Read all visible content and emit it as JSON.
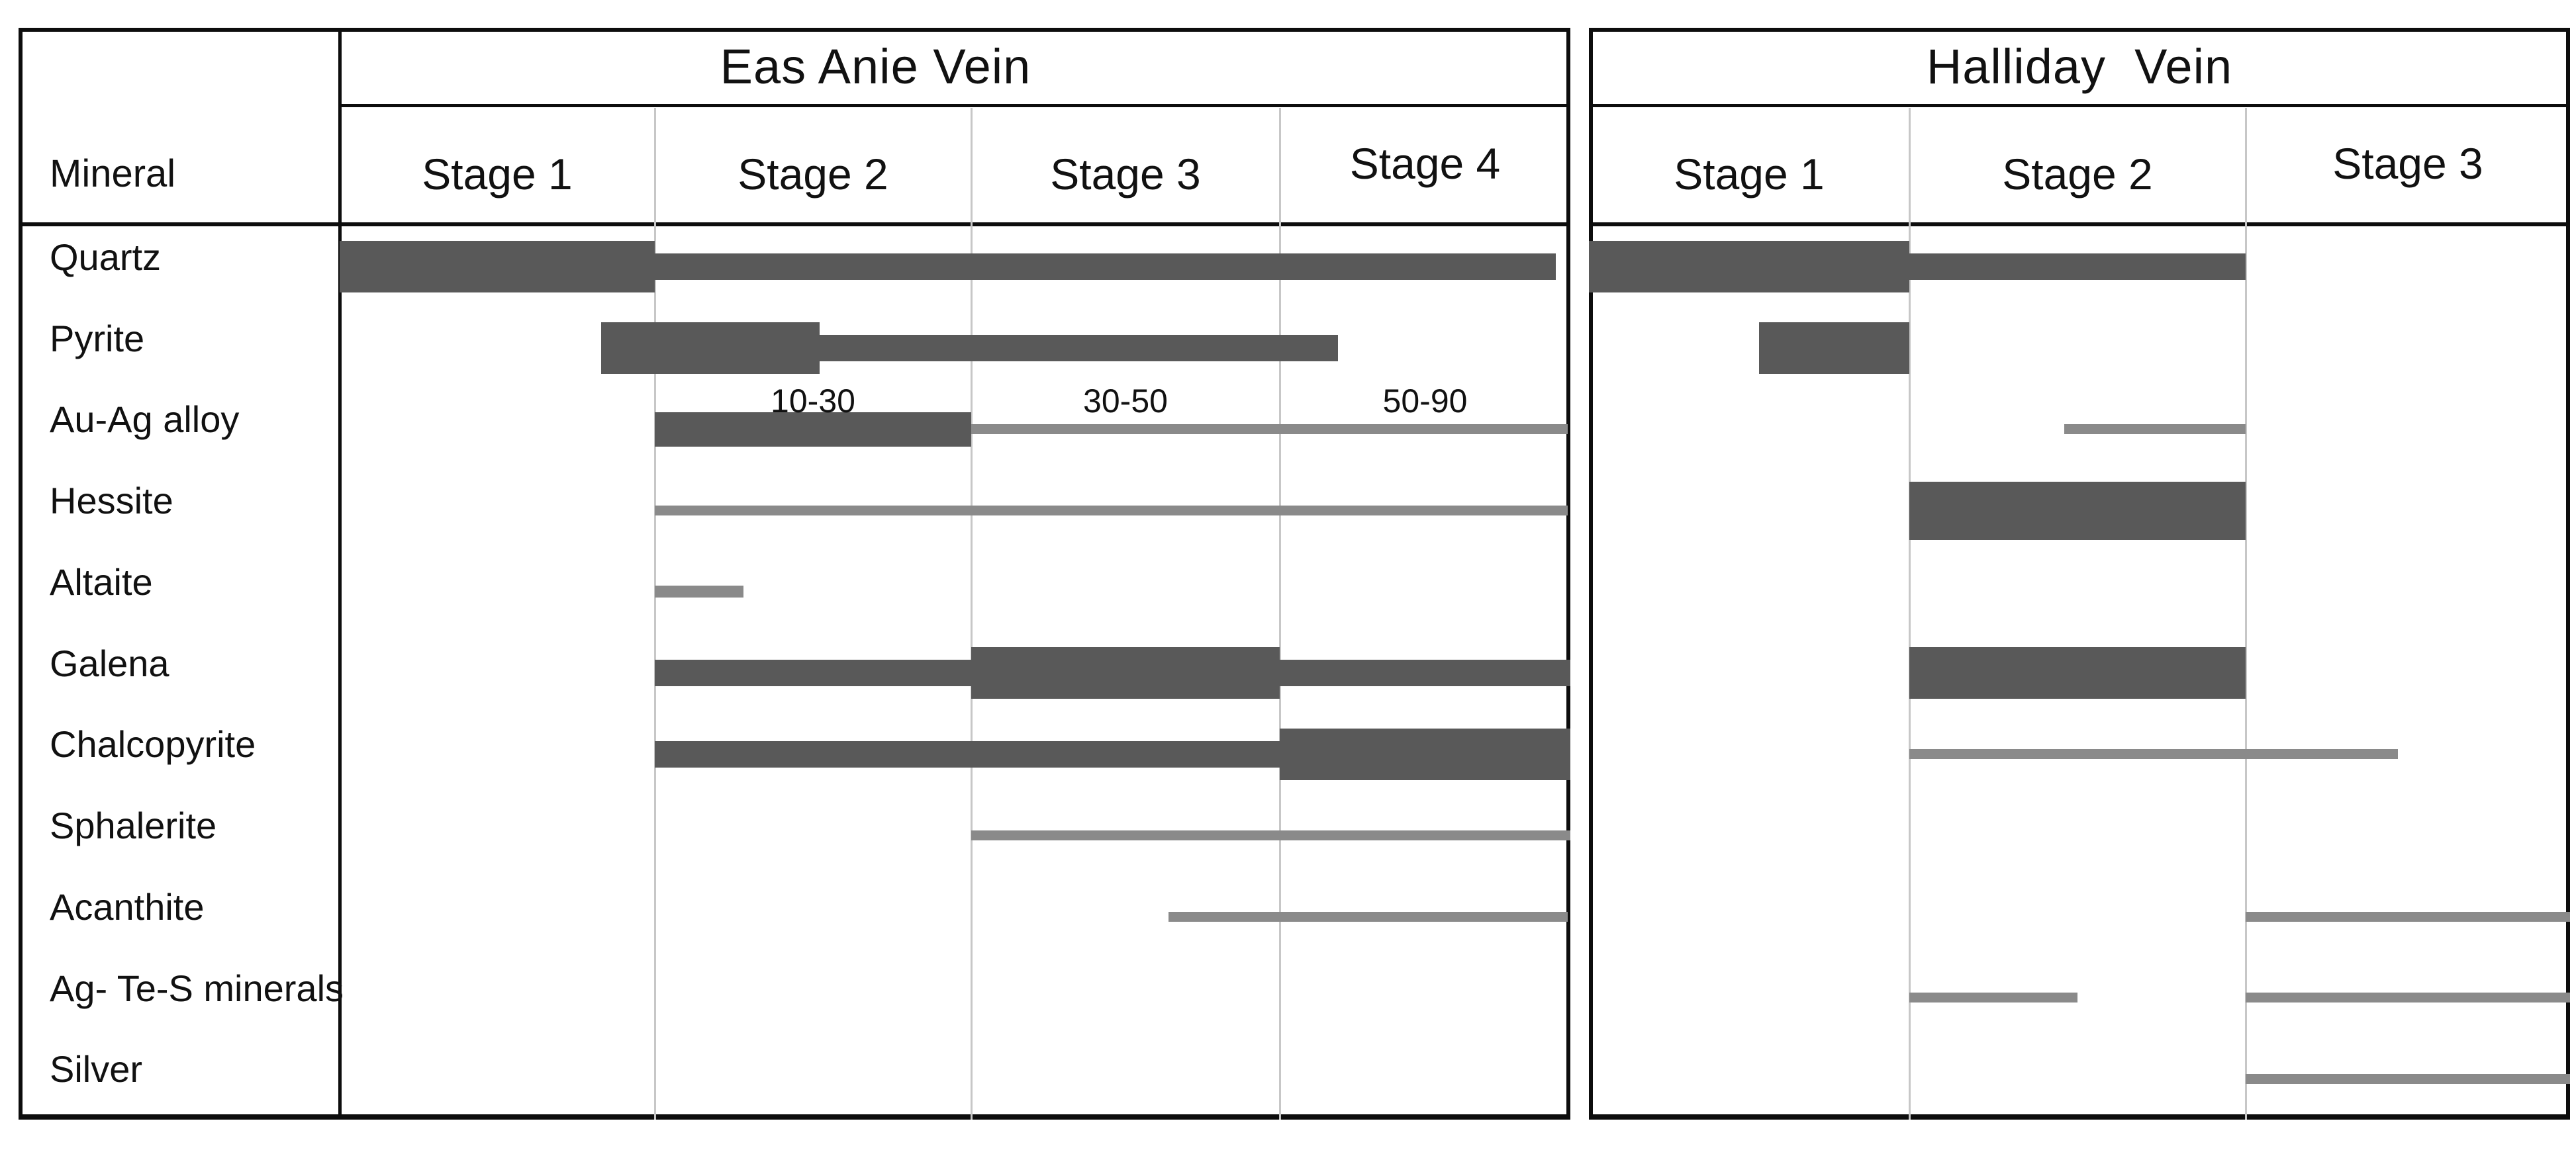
{
  "page": {
    "background": "#ffffff"
  },
  "colors": {
    "bar_dark": "#595959",
    "bar_gray": "#8a8a8a",
    "grid_line": "#c7c7c7",
    "border": "#0d0d0d",
    "text": "#111111"
  },
  "table": {
    "mineral_column_header": "Mineral",
    "minerals": [
      "Quartz",
      "Pyrite",
      "Au-Ag alloy",
      "Hessite",
      "Altaite",
      "Galena",
      "Chalcopyrite",
      "Sphalerite",
      "Acanthite",
      "Ag- Te-S minerals",
      "Silver"
    ]
  },
  "chart_data": {
    "type": "bar",
    "subtype": "paragenetic-sequence-gantt",
    "title": "Mineral paragenesis by vein and stage",
    "bar_weight_meaning": "bar thickness = relative abundance (thick = abundant, medium = common, thin gray line = minor/trace)",
    "x_unit": "stage number (fractional = partial stage)",
    "panels": [
      {
        "title": "Eas Anie Vein",
        "stages": [
          "Stage 1",
          "Stage 2",
          "Stage 3",
          "Stage 4"
        ],
        "annotations": [
          {
            "text": "10-30",
            "over_stage": "Stage 2",
            "row": "Au-Ag alloy"
          },
          {
            "text": "30-50",
            "over_stage": "Stage 3",
            "row": "Au-Ag alloy"
          },
          {
            "text": "50-90",
            "over_stage": "Stage 4",
            "row": "Au-Ag alloy"
          }
        ],
        "bars": [
          {
            "mineral": "Quartz",
            "segments": [
              {
                "from": 0,
                "to": 1,
                "weight": "thick"
              },
              {
                "from": 1,
                "to": 3.95,
                "weight": "medium"
              }
            ]
          },
          {
            "mineral": "Pyrite",
            "segments": [
              {
                "from": 0.83,
                "to": 1.52,
                "weight": "thick"
              },
              {
                "from": 1.52,
                "to": 3.2,
                "weight": "medium"
              }
            ]
          },
          {
            "mineral": "Au-Ag alloy",
            "segments": [
              {
                "from": 1,
                "to": 2,
                "weight": "semi-thick"
              },
              {
                "from": 2,
                "to": 3.99,
                "weight": "thin"
              }
            ]
          },
          {
            "mineral": "Hessite",
            "segments": [
              {
                "from": 1,
                "to": 3.99,
                "weight": "thin"
              }
            ]
          },
          {
            "mineral": "Altaite",
            "segments": [
              {
                "from": 1,
                "to": 1.28,
                "weight": "thin-short"
              }
            ]
          },
          {
            "mineral": "Galena",
            "segments": [
              {
                "from": 1,
                "to": 2,
                "weight": "medium"
              },
              {
                "from": 2,
                "to": 3,
                "weight": "thick"
              },
              {
                "from": 3,
                "to": 4,
                "weight": "medium"
              }
            ]
          },
          {
            "mineral": "Chalcopyrite",
            "segments": [
              {
                "from": 1,
                "to": 3,
                "weight": "medium"
              },
              {
                "from": 3,
                "to": 4,
                "weight": "thick"
              }
            ]
          },
          {
            "mineral": "Sphalerite",
            "segments": [
              {
                "from": 2,
                "to": 4,
                "weight": "thin"
              }
            ]
          },
          {
            "mineral": "Acanthite",
            "segments": [
              {
                "from": 2.64,
                "to": 3.99,
                "weight": "thin"
              }
            ]
          },
          {
            "mineral": "Ag- Te-S minerals",
            "segments": []
          },
          {
            "mineral": "Silver",
            "segments": []
          }
        ]
      },
      {
        "title": "Halliday  Vein",
        "stages": [
          "Stage 1",
          "Stage 2",
          "Stage 3"
        ],
        "annotations": [],
        "bars": [
          {
            "mineral": "Quartz",
            "segments": [
              {
                "from": 0,
                "to": 1,
                "weight": "thick"
              },
              {
                "from": 1,
                "to": 2,
                "weight": "medium"
              }
            ]
          },
          {
            "mineral": "Pyrite",
            "segments": [
              {
                "from": 0.53,
                "to": 1,
                "weight": "thick"
              }
            ]
          },
          {
            "mineral": "Au-Ag alloy",
            "segments": [
              {
                "from": 1.46,
                "to": 2,
                "weight": "thin"
              }
            ]
          },
          {
            "mineral": "Hessite",
            "segments": [
              {
                "from": 1,
                "to": 2,
                "weight": "extra-thick"
              }
            ]
          },
          {
            "mineral": "Altaite",
            "segments": []
          },
          {
            "mineral": "Galena",
            "segments": [
              {
                "from": 1,
                "to": 2,
                "weight": "thick"
              }
            ]
          },
          {
            "mineral": "Chalcopyrite",
            "segments": [
              {
                "from": 1,
                "to": 2.47,
                "weight": "thin"
              }
            ]
          },
          {
            "mineral": "Sphalerite",
            "segments": []
          },
          {
            "mineral": "Acanthite",
            "segments": [
              {
                "from": 2,
                "to": 3,
                "weight": "thin"
              }
            ]
          },
          {
            "mineral": "Ag- Te-S minerals",
            "segments": [
              {
                "from": 1,
                "to": 1.5,
                "weight": "thin"
              },
              {
                "from": 2,
                "to": 3,
                "weight": "thin"
              }
            ]
          },
          {
            "mineral": "Silver",
            "segments": [
              {
                "from": 2,
                "to": 3,
                "weight": "thin"
              }
            ]
          }
        ]
      }
    ]
  }
}
